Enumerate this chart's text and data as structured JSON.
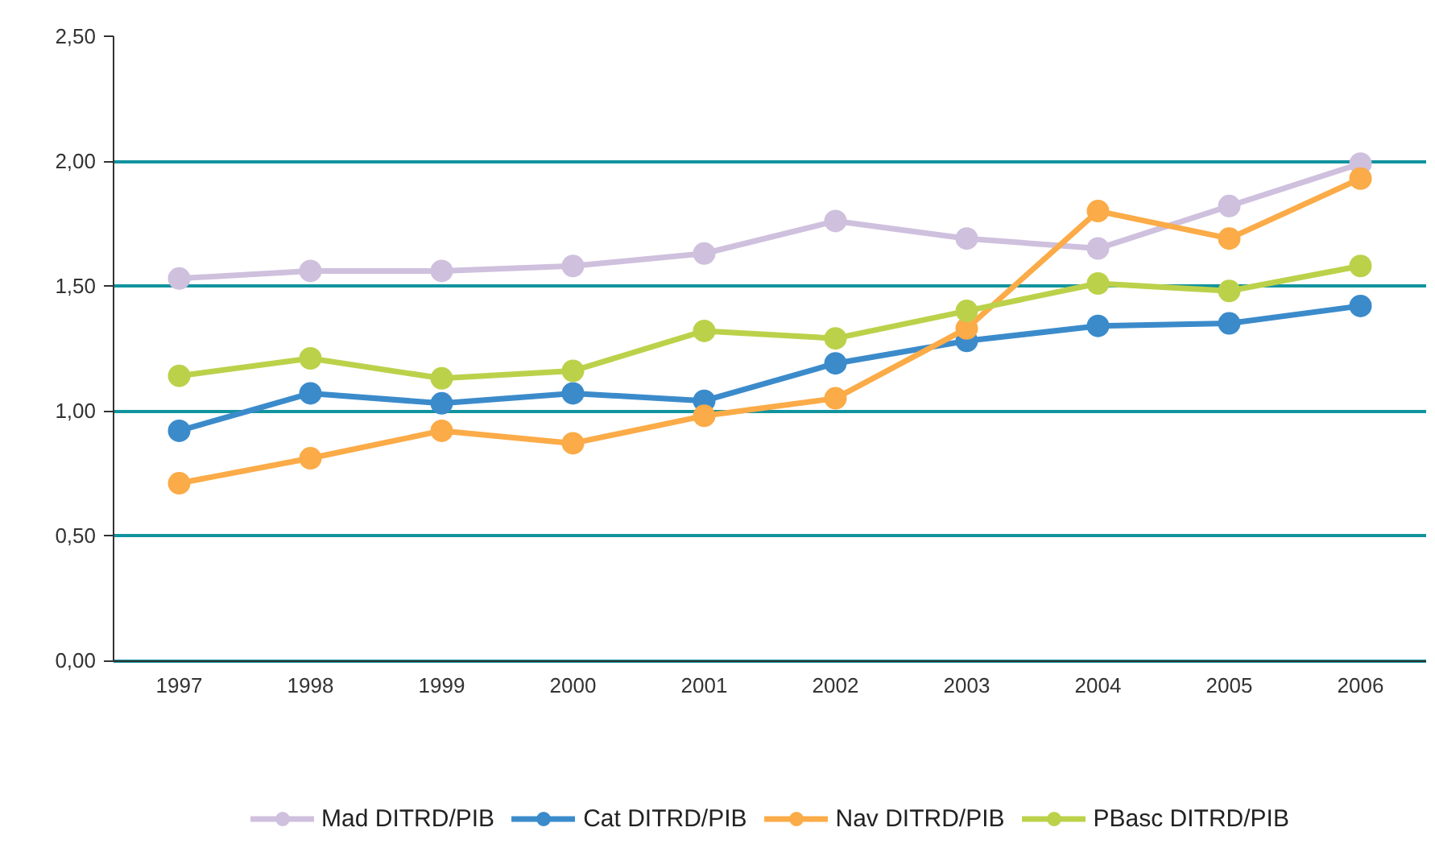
{
  "chart_data": {
    "type": "line",
    "categories": [
      "1997",
      "1998",
      "1999",
      "2000",
      "2001",
      "2002",
      "2003",
      "2004",
      "2005",
      "2006"
    ],
    "series": [
      {
        "name": "Mad DITRD/PIB",
        "color": "#cfc0de",
        "values": [
          1.53,
          1.56,
          1.56,
          1.58,
          1.63,
          1.76,
          1.69,
          1.65,
          1.82,
          1.99
        ]
      },
      {
        "name": "Cat DITRD/PIB",
        "color": "#3b8bcb",
        "values": [
          0.92,
          1.07,
          1.03,
          1.07,
          1.04,
          1.19,
          1.28,
          1.34,
          1.35,
          1.42
        ]
      },
      {
        "name": "Nav DITRD/PIB",
        "color": "#fbab47",
        "values": [
          0.71,
          0.81,
          0.92,
          0.87,
          0.98,
          1.05,
          1.33,
          1.8,
          1.69,
          1.93
        ]
      },
      {
        "name": "PBasc DITRD/PIB",
        "color": "#bcd14a",
        "values": [
          1.14,
          1.21,
          1.13,
          1.16,
          1.32,
          1.29,
          1.4,
          1.51,
          1.48,
          1.58
        ]
      }
    ],
    "ylim": [
      0,
      2.5
    ],
    "yticks": [
      {
        "value": 0,
        "label": "0,00"
      },
      {
        "value": 0.5,
        "label": "0,50"
      },
      {
        "value": 1,
        "label": "1,00"
      },
      {
        "value": 1.5,
        "label": "1,50"
      },
      {
        "value": 2,
        "label": "2,00"
      },
      {
        "value": 2.5,
        "label": "2,50"
      }
    ],
    "grid": "y",
    "legend": "bottom",
    "marker": "circle",
    "line_style": "solid"
  }
}
